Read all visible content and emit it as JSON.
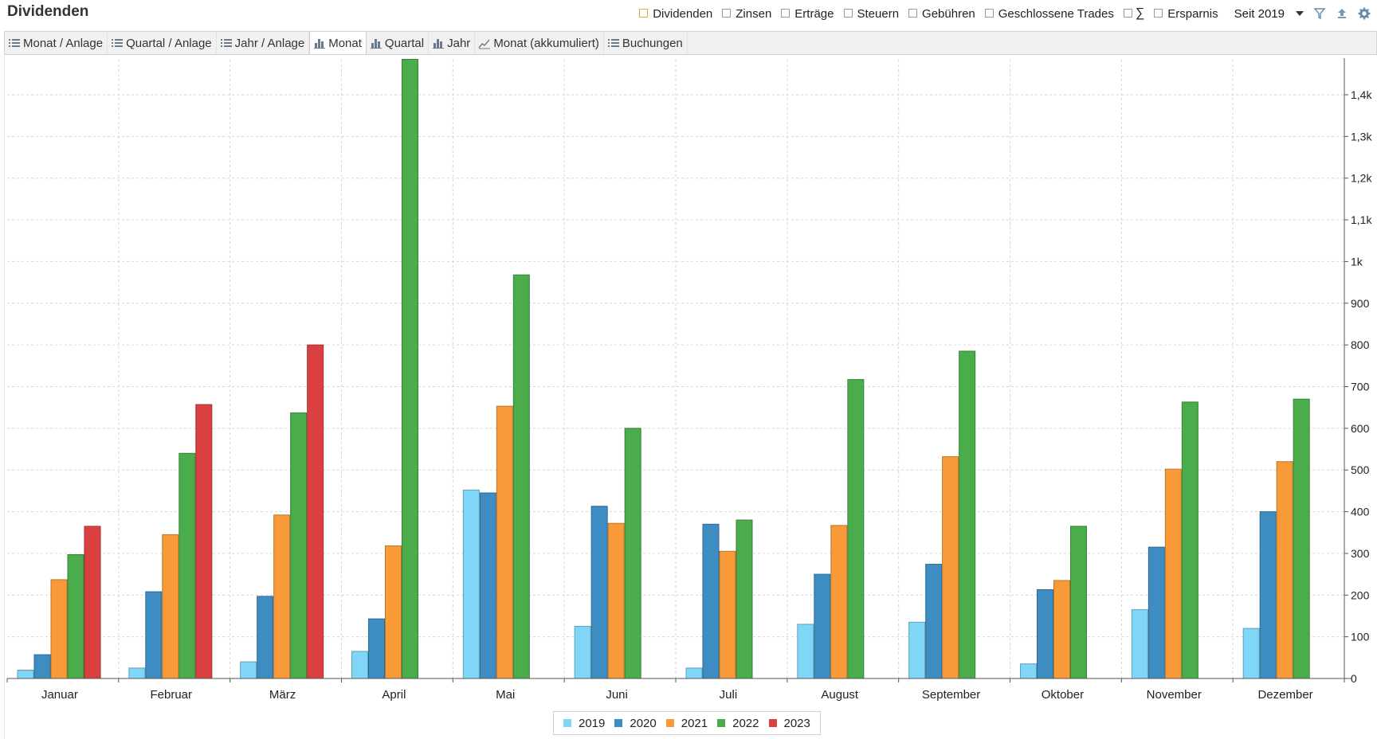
{
  "header": {
    "title": "Dividenden",
    "filters": [
      {
        "label": "Dividenden",
        "checked": true
      },
      {
        "label": "Zinsen",
        "checked": false
      },
      {
        "label": "Erträge",
        "checked": false
      },
      {
        "label": "Steuern",
        "checked": false
      },
      {
        "label": "Gebühren",
        "checked": false
      },
      {
        "label": "Geschlossene Trades",
        "checked": false
      },
      {
        "label": "∑",
        "checked": false
      },
      {
        "label": "Ersparnis",
        "checked": false
      }
    ],
    "since_label": "Seit 2019",
    "icons": [
      "filter-icon",
      "export-icon",
      "settings-icon"
    ]
  },
  "tabs": [
    {
      "label": "Monat / Anlage",
      "icon": "list-icon",
      "active": false
    },
    {
      "label": "Quartal / Anlage",
      "icon": "list-icon",
      "active": false
    },
    {
      "label": "Jahr / Anlage",
      "icon": "list-icon",
      "active": false
    },
    {
      "label": "Monat",
      "icon": "bar-chart-icon",
      "active": true
    },
    {
      "label": "Quartal",
      "icon": "bar-chart-icon",
      "active": false
    },
    {
      "label": "Jahr",
      "icon": "bar-chart-icon",
      "active": false
    },
    {
      "label": "Monat (akkumuliert)",
      "icon": "line-chart-icon",
      "active": false
    },
    {
      "label": "Buchungen",
      "icon": "list-icon",
      "active": false
    }
  ],
  "chart_data": {
    "type": "bar",
    "categories": [
      "Januar",
      "Februar",
      "März",
      "April",
      "Mai",
      "Juni",
      "Juli",
      "August",
      "September",
      "Oktober",
      "November",
      "Dezember"
    ],
    "series": [
      {
        "name": "2019",
        "color": "#7fd6f7",
        "values": [
          20,
          25,
          40,
          65,
          452,
          125,
          25,
          130,
          135,
          35,
          165,
          120
        ]
      },
      {
        "name": "2020",
        "color": "#3d8cc2",
        "values": [
          57,
          208,
          197,
          143,
          445,
          413,
          370,
          250,
          274,
          213,
          315,
          400
        ]
      },
      {
        "name": "2021",
        "color": "#f99a38",
        "values": [
          237,
          345,
          392,
          318,
          653,
          372,
          305,
          367,
          532,
          235,
          502,
          520
        ]
      },
      {
        "name": "2022",
        "color": "#4aac4a",
        "values": [
          297,
          540,
          637,
          1485,
          968,
          600,
          380,
          717,
          785,
          365,
          663,
          670
        ]
      },
      {
        "name": "2023",
        "color": "#da4040",
        "values": [
          365,
          657,
          800,
          null,
          null,
          null,
          null,
          null,
          null,
          null,
          null,
          null
        ]
      }
    ],
    "ylim": [
      0,
      1500
    ],
    "yticks": [
      0,
      100,
      200,
      300,
      400,
      500,
      600,
      700,
      800,
      900,
      1000,
      1100,
      1200,
      1300,
      1400
    ],
    "ytick_labels": [
      "0",
      "100",
      "200",
      "300",
      "400",
      "500",
      "600",
      "700",
      "800",
      "900",
      "1k",
      "1,1k",
      "1,2k",
      "1,3k",
      "1,4k"
    ],
    "grid": true,
    "legend_position": "bottom-center",
    "yaxis_position": "right"
  }
}
